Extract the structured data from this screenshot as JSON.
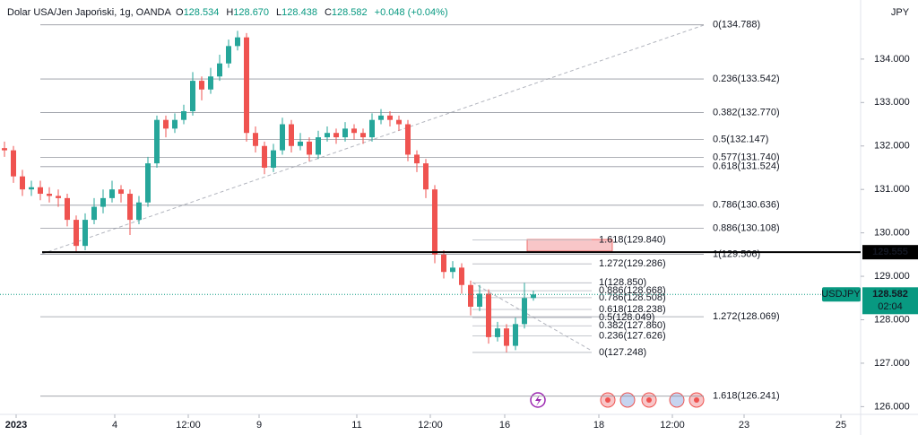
{
  "chart_data": {
    "type": "candlestick",
    "title": "Dolar USA/Jen Japoński, 1g, OANDA",
    "ohlc_header": [
      {
        "key": "O",
        "value": 128.534,
        "label": "128.534"
      },
      {
        "key": "H",
        "value": 128.67,
        "label": "128.670"
      },
      {
        "key": "L",
        "value": 128.438,
        "label": "128.438"
      },
      {
        "key": "C",
        "value": 128.582,
        "label": "128.582"
      }
    ],
    "change": "+0.048 (+0.04%)",
    "currency": "JPY",
    "up_color": "#26a69a",
    "down_color": "#ef5350",
    "x": [
      0.5,
      1.5,
      2.5,
      3.5,
      4.5,
      5.5,
      6.5,
      7.5,
      8.5,
      9.5,
      10.5,
      11.5,
      12.5,
      13.5,
      14.5,
      15.5,
      16.5,
      17.5,
      18.5,
      19.5,
      20.5,
      21.5,
      22.5,
      23.5,
      24.5,
      25.5,
      26.5,
      27.5,
      28.5,
      29.5,
      30.5,
      31.5,
      32.5,
      33.5,
      34.5,
      35.5,
      36.5,
      37.5,
      38.5,
      39.5,
      40.5,
      41.5,
      42.5,
      43.5,
      44.5,
      45.5,
      46.5,
      47.5,
      48.5,
      49.5,
      50.5,
      51.5,
      52.5,
      53.5,
      54.5,
      55.5,
      56.5,
      57.5,
      58.5,
      59.5
    ],
    "open": [
      131.95,
      131.9,
      131.3,
      131.0,
      131.05,
      130.9,
      130.85,
      130.8,
      130.3,
      129.7,
      130.3,
      130.6,
      130.8,
      131.0,
      130.9,
      130.3,
      130.7,
      131.6,
      132.6,
      132.4,
      132.6,
      132.8,
      133.5,
      133.3,
      133.6,
      133.9,
      134.3,
      134.5,
      132.3,
      132.0,
      131.5,
      131.9,
      132.5,
      132.0,
      132.1,
      131.8,
      132.2,
      132.3,
      132.2,
      132.4,
      132.3,
      132.2,
      132.6,
      132.7,
      132.6,
      132.5,
      131.8,
      131.6,
      131.0,
      129.5,
      129.1,
      129.2,
      128.8,
      128.3,
      128.6,
      127.6,
      127.8,
      127.4,
      127.9,
      128.5
    ],
    "high": [
      132.1,
      132.0,
      131.45,
      131.2,
      131.2,
      131.05,
      131.0,
      130.9,
      130.4,
      130.45,
      130.8,
      131.0,
      131.2,
      131.1,
      131.0,
      130.85,
      131.75,
      132.7,
      132.7,
      132.75,
      132.95,
      133.7,
      133.6,
      133.8,
      134.1,
      134.45,
      134.65,
      134.6,
      132.45,
      132.1,
      132.05,
      132.65,
      132.6,
      132.3,
      132.2,
      132.35,
      132.45,
      132.4,
      132.55,
      132.5,
      132.4,
      132.75,
      132.85,
      132.8,
      132.7,
      132.6,
      131.9,
      131.7,
      131.1,
      129.6,
      129.35,
      129.3,
      128.9,
      128.8,
      128.7,
      127.95,
      127.9,
      128.05,
      128.85,
      128.67
    ],
    "low": [
      131.75,
      131.15,
      130.85,
      130.85,
      130.75,
      130.7,
      130.6,
      130.15,
      129.55,
      129.6,
      130.2,
      130.45,
      130.7,
      130.7,
      129.95,
      130.2,
      130.6,
      131.5,
      132.2,
      132.3,
      132.5,
      132.7,
      133.05,
      133.2,
      133.5,
      133.8,
      134.2,
      132.1,
      131.85,
      131.35,
      131.4,
      131.8,
      131.85,
      131.9,
      131.65,
      131.7,
      132.1,
      132.05,
      132.1,
      132.15,
      132.05,
      132.1,
      132.5,
      132.45,
      132.35,
      131.65,
      131.4,
      130.8,
      129.3,
      128.95,
      128.95,
      128.6,
      128.1,
      128.2,
      127.45,
      127.5,
      127.25,
      127.3,
      127.8,
      128.438
    ],
    "close": [
      131.9,
      131.3,
      131.0,
      131.05,
      130.9,
      130.85,
      130.8,
      130.3,
      129.7,
      130.3,
      130.6,
      130.8,
      131.0,
      130.9,
      130.3,
      130.7,
      131.6,
      132.6,
      132.4,
      132.6,
      132.8,
      133.5,
      133.3,
      133.6,
      133.9,
      134.3,
      134.5,
      132.3,
      132.0,
      131.5,
      131.9,
      132.5,
      132.0,
      132.1,
      131.8,
      132.2,
      132.3,
      132.2,
      132.4,
      132.3,
      132.2,
      132.6,
      132.7,
      132.6,
      132.5,
      131.8,
      131.6,
      131.0,
      129.5,
      129.1,
      129.2,
      128.8,
      128.3,
      128.6,
      127.6,
      127.8,
      127.4,
      127.9,
      128.5,
      128.582
    ],
    "xlim": [
      0,
      96
    ],
    "xticks": [
      {
        "value": 1.8,
        "label": "2023"
      },
      {
        "value": 12.8,
        "label": "4"
      },
      {
        "value": 21,
        "label": "12:00"
      },
      {
        "value": 28.9,
        "label": "9"
      },
      {
        "value": 39.8,
        "label": "11"
      },
      {
        "value": 48,
        "label": "12:00"
      },
      {
        "value": 56.3,
        "label": "16"
      },
      {
        "value": 66.8,
        "label": "18"
      },
      {
        "value": 75,
        "label": "12:00"
      },
      {
        "value": 83,
        "label": "23"
      },
      {
        "value": 93.8,
        "label": "25"
      }
    ],
    "ylim": [
      125.76,
      135.36
    ],
    "yticks": [
      {
        "value": 126,
        "label": "126.000"
      },
      {
        "value": 127,
        "label": "127.000"
      },
      {
        "value": 128,
        "label": "128.000"
      },
      {
        "value": 129,
        "label": "129.000"
      },
      {
        "value": 130,
        "label": "130.000"
      },
      {
        "value": 131,
        "label": "131.000"
      },
      {
        "value": 132,
        "label": "132.000"
      },
      {
        "value": 133,
        "label": "133.000"
      },
      {
        "value": 134,
        "label": "134.000"
      }
    ],
    "hline": 129.555,
    "fib_levels": [
      {
        "value": 134.788,
        "label": "0(134.788)"
      },
      {
        "value": 133.542,
        "label": "0.236(133.542)"
      },
      {
        "value": 132.77,
        "label": "0.382(132.770)"
      },
      {
        "value": 132.147,
        "label": "0.5(132.147)"
      },
      {
        "value": 131.74,
        "label": "0.577(131.740)"
      },
      {
        "value": 131.524,
        "label": "0.618(131.524)"
      },
      {
        "value": 130.636,
        "label": "0.786(130.636)"
      },
      {
        "value": 130.108,
        "label": "0.886(130.108)"
      },
      {
        "value": 129.506,
        "label": "1(129.506)"
      },
      {
        "value": 128.069,
        "label": "1.272(128.069)"
      },
      {
        "value": 126.241,
        "label": "1.618(126.241)"
      }
    ],
    "fib2_levels": [
      {
        "value": 129.84,
        "label": "1.618(129.840)"
      },
      {
        "value": 129.286,
        "label": "1.272(129.286)"
      },
      {
        "value": 128.85,
        "label": "1(128.850)"
      },
      {
        "value": 128.668,
        "label": "0.886(128.668)"
      },
      {
        "value": 128.508,
        "label": "0.786(128.508)"
      },
      {
        "value": 128.238,
        "label": "0.618(128.238)"
      },
      {
        "value": 128.049,
        "label": "0.5(128.049)"
      },
      {
        "value": 127.86,
        "label": "0.382(127.860)"
      },
      {
        "value": 127.626,
        "label": "0.236(127.626)"
      },
      {
        "value": 127.248,
        "label": "0(127.248)"
      }
    ],
    "last": {
      "symbol": "USDJPY",
      "price": 128.582,
      "countdown": "02:04"
    }
  }
}
